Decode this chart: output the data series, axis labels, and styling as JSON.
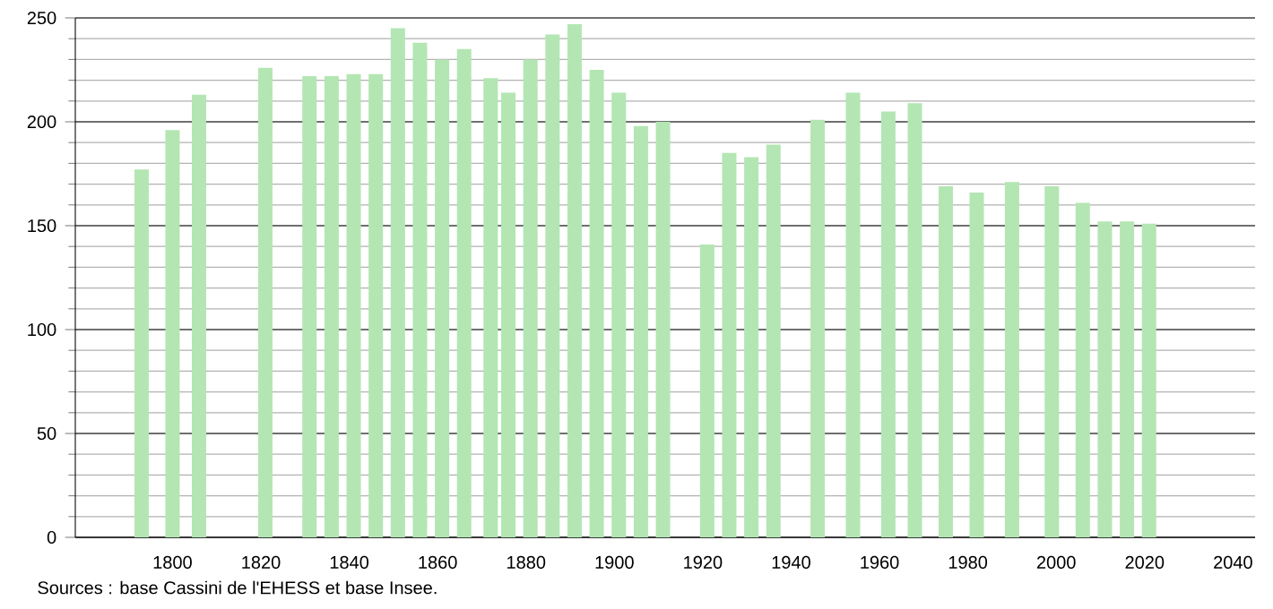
{
  "chart_data": {
    "type": "bar",
    "x": [
      1793,
      1800,
      1806,
      1821,
      1831,
      1836,
      1841,
      1846,
      1851,
      1856,
      1861,
      1866,
      1872,
      1876,
      1881,
      1886,
      1891,
      1896,
      1901,
      1906,
      1911,
      1921,
      1926,
      1931,
      1936,
      1946,
      1954,
      1962,
      1968,
      1975,
      1982,
      1990,
      1999,
      2006,
      2011,
      2016,
      2021
    ],
    "values": [
      177,
      196,
      213,
      226,
      222,
      222,
      223,
      223,
      245,
      238,
      230,
      235,
      221,
      214,
      230,
      242,
      247,
      225,
      214,
      198,
      200,
      141,
      185,
      183,
      189,
      201,
      214,
      205,
      209,
      169,
      166,
      171,
      169,
      161,
      152,
      152,
      151
    ],
    "color": "#b3e6b3",
    "xlim": [
      1778,
      2045
    ],
    "xticks": [
      1800,
      1820,
      1840,
      1860,
      1880,
      1900,
      1920,
      1940,
      1960,
      1980,
      2000,
      2020,
      2040
    ],
    "ylim": [
      0,
      250
    ],
    "yticks": [
      0,
      50,
      100,
      150,
      200,
      250
    ],
    "grid": "y",
    "annotations": [
      "Sources : base Cassini de l'EHESS et base Insee."
    ]
  }
}
